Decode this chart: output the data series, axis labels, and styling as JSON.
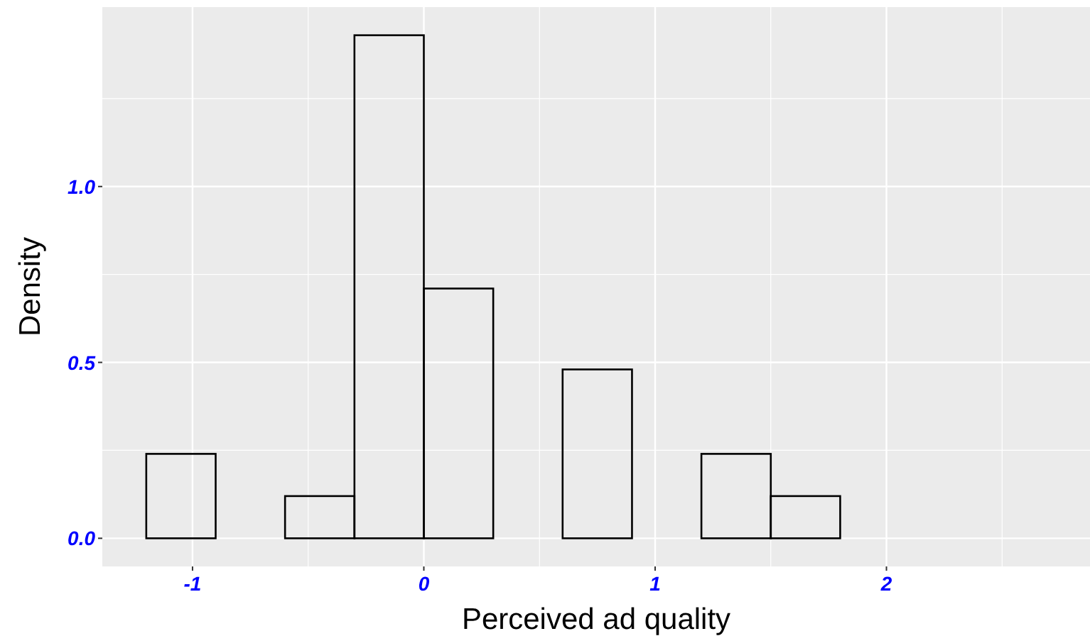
{
  "chart_data": {
    "type": "histogram",
    "xlabel": "Perceived ad quality",
    "ylabel": "Density",
    "bins": [
      -1.2,
      -0.9,
      -0.6,
      -0.3,
      0,
      0.3,
      0.6,
      0.9,
      1.2,
      1.5,
      1.8,
      2.1,
      2.4,
      2.7
    ],
    "values": [
      0.24,
      0,
      0.12,
      1.43,
      0.71,
      0,
      0.48,
      0,
      0.24,
      0.12,
      0,
      0,
      0
    ],
    "color": "#000000",
    "xlim": [
      -1.39,
      2.88
    ],
    "xticks": [
      -1,
      0,
      1,
      2
    ],
    "ylim": [
      -0.08,
      1.51
    ],
    "yticks": [
      {
        "value": 0,
        "label": "0.0"
      },
      {
        "value": 0.5,
        "label": "0.5"
      },
      {
        "value": 1,
        "label": "1.0"
      }
    ],
    "grid": true
  }
}
